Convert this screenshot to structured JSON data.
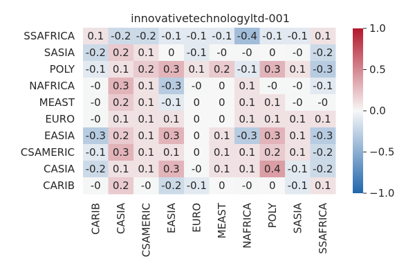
{
  "chart_data": {
    "type": "heatmap",
    "title": "innovativetechnologyltd-001",
    "x_labels": [
      "CARIB",
      "CASIA",
      "CSAMERIC",
      "EASIA",
      "EURO",
      "MEAST",
      "NAFRICA",
      "POLY",
      "SASIA",
      "SSAFRICA"
    ],
    "y_labels": [
      "SSAFRICA",
      "SASIA",
      "POLY",
      "NAFRICA",
      "MEAST",
      "EURO",
      "EASIA",
      "CSAMERIC",
      "CASIA",
      "CARIB"
    ],
    "values": [
      [
        0.1,
        -0.2,
        -0.2,
        -0.1,
        -0.1,
        -0.1,
        -0.4,
        -0.1,
        -0.1,
        0.1
      ],
      [
        -0.2,
        0.2,
        0.1,
        0,
        -0.1,
        -0.01,
        -0.01,
        0,
        -0.01,
        -0.2
      ],
      [
        -0.1,
        0.1,
        0.2,
        0.3,
        0.1,
        0.2,
        -0.1,
        0.3,
        0.1,
        -0.3
      ],
      [
        -0.01,
        0.3,
        0.1,
        -0.3,
        -0.01,
        0,
        0.1,
        -0.01,
        -0.01,
        -0.1
      ],
      [
        -0.01,
        0.2,
        0.1,
        -0.1,
        0,
        0,
        0.1,
        0.1,
        -0.01,
        -0.01
      ],
      [
        -0.01,
        0.1,
        0.1,
        0.1,
        0,
        0,
        0.1,
        0.1,
        0.1,
        0.1
      ],
      [
        -0.3,
        0.2,
        0.1,
        0.3,
        0,
        0.1,
        -0.3,
        0.3,
        0.1,
        -0.3
      ],
      [
        -0.1,
        0.3,
        0.1,
        0.1,
        0,
        0.1,
        0.1,
        0.2,
        0.1,
        -0.2
      ],
      [
        -0.2,
        0.1,
        0.1,
        0.3,
        -0.01,
        0.1,
        0.1,
        0.4,
        -0.1,
        -0.2
      ],
      [
        -0.01,
        0.2,
        -0.01,
        -0.2,
        -0.1,
        0,
        -0.01,
        0,
        -0.1,
        0.1
      ]
    ],
    "cell_labels": [
      [
        "0.1",
        "-0.2",
        "-0.2",
        "-0.1",
        "-0.1",
        "-0.1",
        "-0.4",
        "-0.1",
        "-0.1",
        "0.1"
      ],
      [
        "-0.2",
        "0.2",
        "0.1",
        "0",
        "-0.1",
        "-0",
        "-0",
        "0",
        "-0",
        "-0.2"
      ],
      [
        "-0.1",
        "0.1",
        "0.2",
        "0.3",
        "0.1",
        "0.2",
        "-0.1",
        "0.3",
        "0.1",
        "-0.3"
      ],
      [
        "-0",
        "0.3",
        "0.1",
        "-0.3",
        "-0",
        "0",
        "0.1",
        "-0",
        "-0",
        "-0.1"
      ],
      [
        "-0",
        "0.2",
        "0.1",
        "-0.1",
        "0",
        "0",
        "0.1",
        "0.1",
        "-0",
        "-0"
      ],
      [
        "-0",
        "0.1",
        "0.1",
        "0.1",
        "0",
        "0",
        "0.1",
        "0.1",
        "0.1",
        "0.1"
      ],
      [
        "-0.3",
        "0.2",
        "0.1",
        "0.3",
        "0",
        "0.1",
        "-0.3",
        "0.3",
        "0.1",
        "-0.3"
      ],
      [
        "-0.1",
        "0.3",
        "0.1",
        "0.1",
        "0",
        "0.1",
        "0.1",
        "0.2",
        "0.1",
        "-0.2"
      ],
      [
        "-0.2",
        "0.1",
        "0.1",
        "0.3",
        "-0",
        "0.1",
        "0.1",
        "0.4",
        "-0.1",
        "-0.2"
      ],
      [
        "-0",
        "0.2",
        "-0",
        "-0.2",
        "-0.1",
        "0",
        "-0",
        "0",
        "-0.1",
        "0.1"
      ]
    ],
    "color_range": [
      -1.0,
      1.0
    ],
    "colorbar_ticks": [
      "1.0",
      "0.5",
      "0.0",
      "−0.5",
      "−1.0"
    ],
    "colormap": [
      "#2166ac",
      "#f7f7f7",
      "#b2182b"
    ],
    "grid": false
  }
}
